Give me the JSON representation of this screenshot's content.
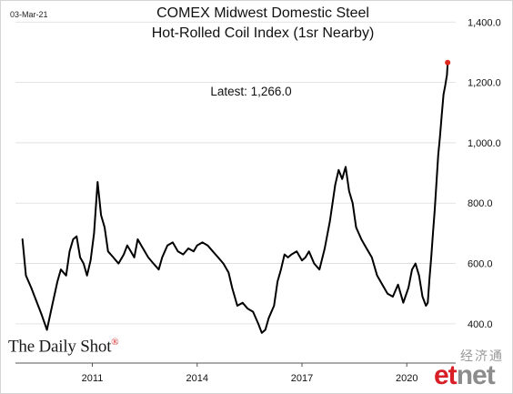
{
  "header": {
    "date": "03-Mar-21",
    "title_line1": "COMEX Midwest Domestic Steel",
    "title_line2": "Hot-Rolled Coil Index (1sr Nearby)"
  },
  "annotation": {
    "latest": "Latest:  1,266.0"
  },
  "branding": {
    "source": "The Daily Shot",
    "source_mark": "®"
  },
  "watermark": {
    "cn": "经济通",
    "logo_et": "et",
    "logo_net": "net"
  },
  "colors": {
    "line": "#000000",
    "last_point": "#e0281e",
    "grid": "#dcdcdc"
  },
  "chart_data": {
    "type": "line",
    "title": "COMEX Midwest Domestic Steel Hot-Rolled Coil Index (1sr Nearby)",
    "xlim": [
      2008.8,
      2021.4
    ],
    "ylim": [
      270,
      1440
    ],
    "x_ticks": [
      2011,
      2014,
      2017,
      2020
    ],
    "x_tick_labels": [
      "2011",
      "2014",
      "2017",
      "2020"
    ],
    "y_ticks": [
      400,
      600,
      800,
      1000,
      1200,
      1400
    ],
    "y_tick_labels": [
      "400.0",
      "600.0",
      "800.0",
      "1,000.0",
      "1,200.0",
      "1,400.0"
    ],
    "y_axis_side": "right",
    "grid": "horizontal",
    "latest_value": 1266.0,
    "x": [
      2009.0,
      2009.1,
      2009.25,
      2009.35,
      2009.55,
      2009.7,
      2009.85,
      2010.0,
      2010.1,
      2010.25,
      2010.35,
      2010.45,
      2010.55,
      2010.65,
      2010.75,
      2010.85,
      2010.95,
      2011.05,
      2011.15,
      2011.25,
      2011.35,
      2011.45,
      2011.6,
      2011.75,
      2011.9,
      2012.0,
      2012.1,
      2012.2,
      2012.3,
      2012.45,
      2012.6,
      2012.75,
      2012.9,
      2013.0,
      2013.15,
      2013.3,
      2013.45,
      2013.6,
      2013.75,
      2013.9,
      2014.0,
      2014.15,
      2014.3,
      2014.45,
      2014.6,
      2014.75,
      2014.9,
      2015.0,
      2015.15,
      2015.3,
      2015.45,
      2015.6,
      2015.75,
      2015.85,
      2015.95,
      2016.05,
      2016.2,
      2016.3,
      2016.4,
      2016.5,
      2016.6,
      2016.7,
      2016.85,
      2017.0,
      2017.1,
      2017.2,
      2017.35,
      2017.5,
      2017.65,
      2017.8,
      2017.95,
      2018.05,
      2018.15,
      2018.25,
      2018.35,
      2018.45,
      2018.55,
      2018.7,
      2018.85,
      2019.0,
      2019.15,
      2019.3,
      2019.45,
      2019.6,
      2019.75,
      2019.9,
      2020.05,
      2020.15,
      2020.25,
      2020.35,
      2020.45,
      2020.55,
      2020.6,
      2020.65,
      2020.7,
      2020.75,
      2020.8,
      2020.85,
      2020.9,
      2020.95,
      2021.0,
      2021.05,
      2021.1,
      2021.15,
      2021.17
    ],
    "y": [
      680,
      560,
      520,
      490,
      430,
      380,
      460,
      540,
      580,
      560,
      640,
      680,
      690,
      620,
      600,
      560,
      610,
      700,
      870,
      760,
      720,
      640,
      620,
      600,
      630,
      660,
      640,
      620,
      680,
      650,
      620,
      600,
      580,
      620,
      660,
      670,
      640,
      630,
      650,
      640,
      660,
      670,
      660,
      640,
      620,
      600,
      570,
      520,
      460,
      470,
      450,
      440,
      400,
      370,
      380,
      420,
      460,
      540,
      580,
      630,
      620,
      630,
      640,
      610,
      620,
      640,
      600,
      580,
      650,
      740,
      860,
      910,
      880,
      920,
      840,
      800,
      720,
      680,
      650,
      620,
      560,
      530,
      500,
      490,
      530,
      470,
      520,
      580,
      600,
      560,
      490,
      460,
      470,
      550,
      620,
      700,
      780,
      870,
      960,
      1020,
      1090,
      1160,
      1190,
      1225,
      1266
    ]
  }
}
